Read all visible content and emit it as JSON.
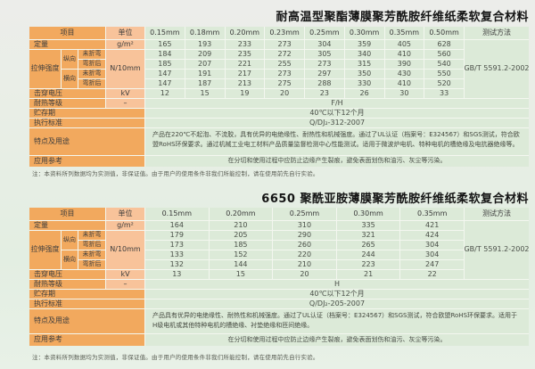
{
  "colors": {
    "label_orange": "#f2a95e",
    "unit_salmon": "#f8c39a",
    "data_green": "#dcead8"
  },
  "tables": [
    {
      "title": "耐高温型聚酯薄膜聚芳酰胺纤维纸柔软复合材料",
      "header": {
        "item_label": "项目",
        "unit_label": "单位",
        "thickness_columns": [
          "0.15mm",
          "0.18mm",
          "0.20mm",
          "0.23mm",
          "0.25mm",
          "0.30mm",
          "0.35mm",
          "0.50mm"
        ],
        "method_label": "测试方法"
      },
      "rows": {
        "basis_weight": {
          "label": "定量",
          "unit": "g/m²",
          "values": [
            "165",
            "193",
            "233",
            "273",
            "304",
            "359",
            "405",
            "628"
          ]
        },
        "tensile_strength": {
          "label": "拉伸强度",
          "unit": "N/10mm",
          "sub_rows": [
            {
              "direction": "纵向",
              "bend": "未折弯",
              "values": [
                "184",
                "209",
                "235",
                "272",
                "305",
                "340",
                "410",
                "560"
              ]
            },
            {
              "direction": "",
              "bend": "弯折后",
              "values": [
                "185",
                "207",
                "221",
                "255",
                "273",
                "315",
                "390",
                "540"
              ]
            },
            {
              "direction": "横向",
              "bend": "未折弯",
              "values": [
                "147",
                "191",
                "217",
                "273",
                "297",
                "350",
                "430",
                "550"
              ]
            },
            {
              "direction": "",
              "bend": "弯折后",
              "values": [
                "147",
                "187",
                "213",
                "275",
                "288",
                "330",
                "410",
                "520"
              ]
            }
          ]
        },
        "breakdown_voltage": {
          "label": "击穿电压",
          "unit": "kV",
          "values": [
            "12",
            "15",
            "19",
            "20",
            "23",
            "26",
            "30",
            "33"
          ]
        },
        "test_method_value": "GB/T 5591.2-2002",
        "heat_class": {
          "label": "耐热等级",
          "unit": "–",
          "value": "F/H"
        },
        "storage": {
          "label": "贮存期",
          "value": "40℃以下12个月"
        },
        "standard": {
          "label": "执行标准",
          "value": "Q/DJ₂-312-2007"
        },
        "features": {
          "label": "特点及用途",
          "value": "产品在220℃不起泡、不流胶，具有优异的电绝缘性、耐热性和机械强度。通过了UL认证（档案号：E324567）和SGS测试，符合欧盟RoHS环保要求。通过机械工业电工材料产品质量监督检测中心性能测试。适用于微波炉电机、特种电机的槽绝缘及电抗器绝缘等。"
        },
        "application": {
          "label": "应用参考",
          "value": "在分切和使用过程中应防止边缘产生裂痕，避免表面划伤和油污、灰尘等污染。"
        }
      },
      "note": "注：本资料所列数据均为实测值，非保证值。由于用户的使用条件非我们所能控制，请在使用前先自行实验。"
    },
    {
      "title": "6650 聚酰亚胺薄膜聚芳酰胺纤维纸柔软复合材料",
      "header": {
        "item_label": "项目",
        "unit_label": "单位",
        "thickness_columns": [
          "0.15mm",
          "0.20mm",
          "0.25mm",
          "0.30mm",
          "0.35mm"
        ],
        "method_label": "测试方法"
      },
      "rows": {
        "basis_weight": {
          "label": "定量",
          "unit": "g/m²",
          "values": [
            "164",
            "210",
            "310",
            "335",
            "421"
          ]
        },
        "tensile_strength": {
          "label": "拉伸强度",
          "unit": "N/10mm",
          "sub_rows": [
            {
              "direction": "纵向",
              "bend": "未折弯",
              "values": [
                "179",
                "205",
                "290",
                "321",
                "424"
              ]
            },
            {
              "direction": "",
              "bend": "弯折后",
              "values": [
                "173",
                "185",
                "260",
                "265",
                "304"
              ]
            },
            {
              "direction": "横向",
              "bend": "未折弯",
              "values": [
                "133",
                "152",
                "220",
                "244",
                "304"
              ]
            },
            {
              "direction": "",
              "bend": "弯折后",
              "values": [
                "132",
                "144",
                "210",
                "223",
                "247"
              ]
            }
          ]
        },
        "breakdown_voltage": {
          "label": "击穿电压",
          "unit": "kV",
          "values": [
            "13",
            "15",
            "20",
            "21",
            "22"
          ]
        },
        "test_method_value": "GB/T 5591.2-2002",
        "heat_class": {
          "label": "耐热等级",
          "unit": "–",
          "value": "H"
        },
        "storage": {
          "label": "贮存期",
          "value": "40℃以下12个月"
        },
        "standard": {
          "label": "执行标准",
          "value": "Q/DJ₂-205-2007"
        },
        "features": {
          "label": "特点及用途",
          "value": "产品具有优异的电绝缘性、耐热性和机械强度。通过了UL认证（档案号：E324567）和SGS测试，符合欧盟RoHS环保要求。适用于H级电机或其他特种电机的槽绝缘、衬垫绝缘和匝间绝缘。"
        },
        "application": {
          "label": "应用参考",
          "value": "在分切和使用过程中应防止边缘产生裂痕，避免表面划伤和油污、灰尘等污染。"
        }
      },
      "note": "注：本资料所列数据均为实测值，非保证值。由于用户的使用条件非我们所能控制，请在使用前先自行实验。"
    }
  ]
}
